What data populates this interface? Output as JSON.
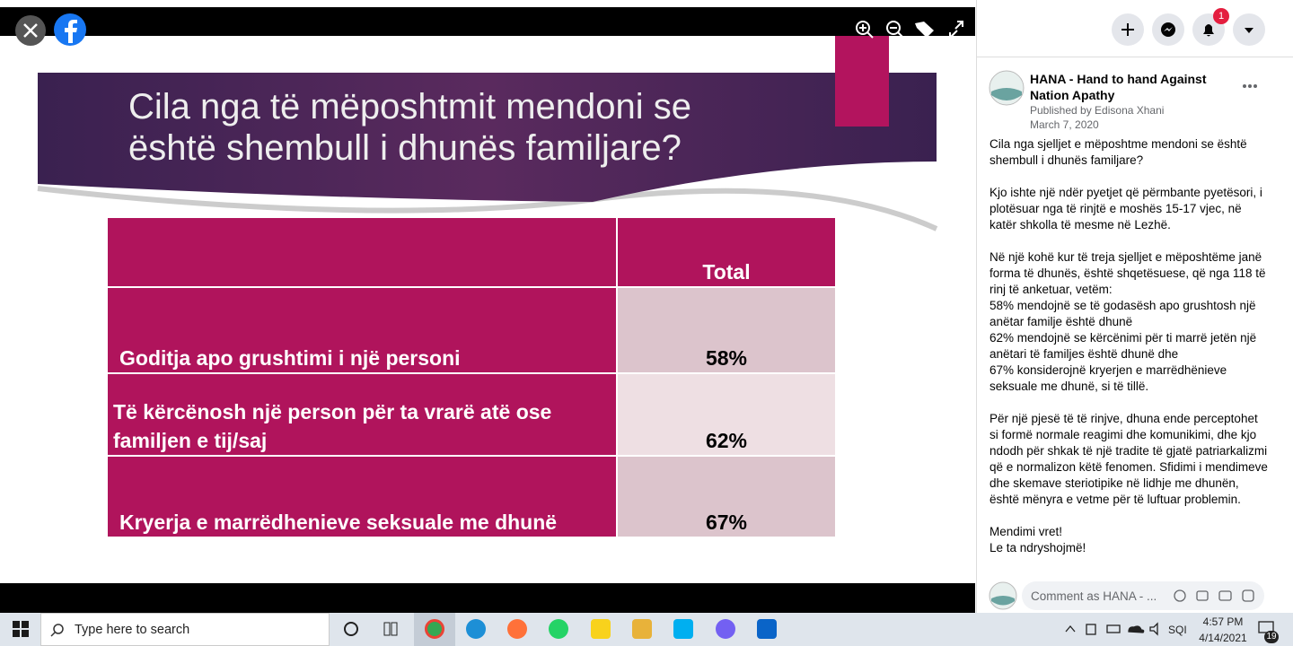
{
  "viewer": {
    "slide": {
      "title_lines": [
        "Cila nga të mëposhtmit mendoni se",
        "është shembull i dhunës familjare?"
      ],
      "table": {
        "header": "Total",
        "rows": [
          [
            "Goditja apo grushtimi i një personi",
            "58%"
          ],
          [
            "Të kërcënosh një person për ta vrarë atë ose familjen e tij/saj",
            "62%"
          ],
          [
            "Kryerja e marrëdhenieve seksuale me dhunë",
            "67%"
          ]
        ]
      }
    }
  },
  "topbar": {
    "notification_count": "1"
  },
  "post": {
    "page_name": "HANA - Hand to hand Against Nation Apathy",
    "published_by": "Published by Edisona Xhani",
    "date": "March 7, 2020",
    "paragraphs": [
      [
        "Cila nga sjelljet e mëposhtme mendoni se është shembull i dhunës familjare?"
      ],
      [
        "Kjo ishte një ndër pyetjet që përmbante pyetësori, i plotësuar nga të rinjtë e moshës 15-17 vjec, në katër shkolla të mesme në Lezhë."
      ],
      [
        "Në një kohë kur të treja sjelljet e mëposhtëme janë forma të dhunës, është shqetësuese, që nga 118 të rinj të anketuar, vetëm:",
        "58% mendojnë se të godasësh apo grushtosh një anëtar familje është dhunë",
        "62% mendojnë se kërcënimi për ti marrë jetën një anëtari të familjes është dhunë dhe",
        "67% konsiderojnë kryerjen e marrëdhënieve seksuale me dhunë, si të tillë."
      ],
      [
        "Për një pjesë të të rinjve, dhuna ende perceptohet si formë normale reagimi dhe komunikimi, dhe kjo ndodh për shkak të një tradite të gjatë patriarkalizmi që e normalizon këtë fenomen. Sfidimi i mendimeve dhe skemave steriotipike në lidhje me dhunën, është mënyra e vetme për të luftuar problemin."
      ],
      [
        "Mendimi vret!",
        "Le ta ndryshojmë!"
      ]
    ],
    "comment_placeholder": "Comment as HANA - ..."
  },
  "taskbar": {
    "search": "Type here to search",
    "language": "SQI",
    "time": "4:57 PM",
    "date": "4/14/2021",
    "notifications": "19"
  }
}
